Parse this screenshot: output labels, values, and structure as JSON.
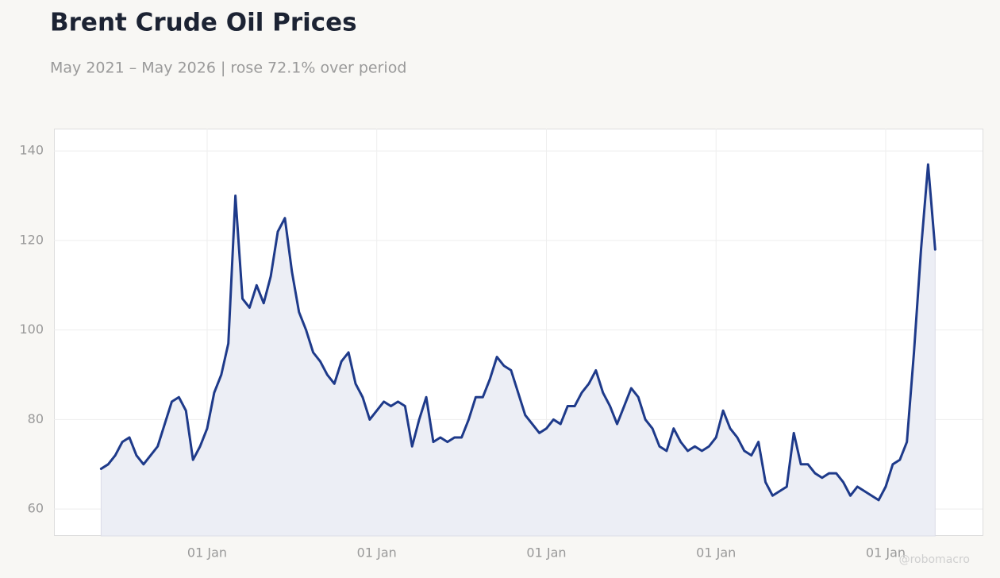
{
  "chart_data": {
    "type": "line",
    "title": "Brent Crude Oil Prices",
    "subtitle": "May 2021 – May 2026 | rose 72.1% over period",
    "watermark": "@robomacro",
    "categories": [
      null,
      null,
      null,
      null,
      null,
      null,
      null,
      null,
      null,
      null,
      null,
      null,
      null,
      null,
      null,
      "01 Jan",
      null,
      null,
      null,
      null,
      null,
      null,
      null,
      null,
      null,
      null,
      null,
      null,
      null,
      null,
      null,
      null,
      null,
      null,
      null,
      null,
      null,
      null,
      null,
      "01 Jan",
      null,
      null,
      null,
      null,
      null,
      null,
      null,
      null,
      null,
      null,
      null,
      null,
      null,
      null,
      null,
      null,
      null,
      null,
      null,
      null,
      null,
      null,
      null,
      "01 Jan",
      null,
      null,
      null,
      null,
      null,
      null,
      null,
      null,
      null,
      null,
      null,
      null,
      null,
      null,
      null,
      null,
      null,
      null,
      null,
      null,
      null,
      null,
      null,
      "01 Jan",
      null,
      null,
      null,
      null,
      null,
      null,
      null,
      null,
      null,
      null,
      null,
      null,
      null,
      null,
      null,
      null,
      null,
      null,
      null,
      null,
      null,
      null,
      null,
      "01 Jan",
      null,
      null,
      null,
      null,
      null,
      null,
      null
    ],
    "series": [
      {
        "name": "Brent Crude",
        "color": "#1e3a8a",
        "fill": "#eceef5",
        "values": [
          69,
          70,
          72,
          75,
          76,
          72,
          70,
          72,
          74,
          79,
          84,
          85,
          82,
          71,
          74,
          78,
          86,
          90,
          97,
          130,
          107,
          105,
          110,
          106,
          112,
          122,
          125,
          113,
          104,
          100,
          95,
          93,
          90,
          88,
          93,
          95,
          88,
          85,
          80,
          82,
          84,
          83,
          84,
          83,
          74,
          80,
          85,
          75,
          76,
          75,
          76,
          76,
          80,
          85,
          85,
          89,
          94,
          92,
          91,
          86,
          81,
          79,
          77,
          78,
          80,
          79,
          83,
          83,
          86,
          88,
          91,
          86,
          83,
          79,
          83,
          87,
          85,
          80,
          78,
          74,
          73,
          78,
          75,
          73,
          74,
          73,
          74,
          76,
          82,
          78,
          76,
          73,
          72,
          75,
          66,
          63,
          64,
          65,
          77,
          70,
          70,
          68,
          67,
          68,
          68,
          66,
          63,
          65,
          64,
          63,
          62,
          65,
          70,
          71,
          75,
          95,
          118,
          137,
          118
        ]
      }
    ],
    "ylim": [
      54,
      145
    ],
    "yticks": [
      60,
      80,
      100,
      120,
      140
    ],
    "grid": true
  }
}
